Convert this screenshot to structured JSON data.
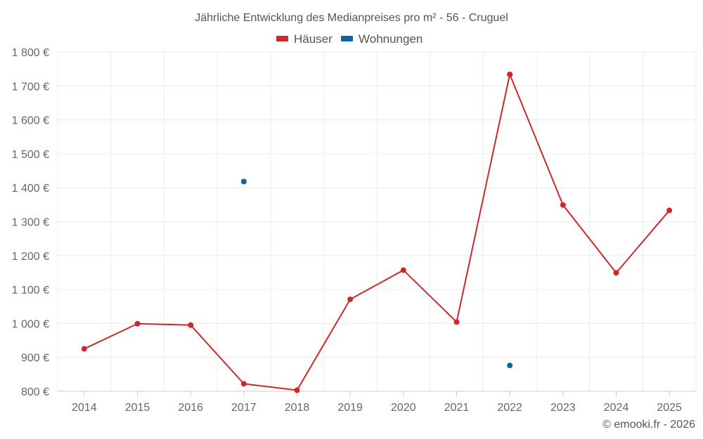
{
  "chart_data": {
    "type": "line",
    "title": "Jährliche Entwicklung des Medianpreises pro m² - 56 - Cruguel",
    "categories": [
      "2014",
      "2015",
      "2016",
      "2017",
      "2018",
      "2019",
      "2020",
      "2021",
      "2022",
      "2023",
      "2024",
      "2025"
    ],
    "ylim": [
      800,
      1800
    ],
    "ytick_step": 100,
    "ytick_labels": [
      "800 €",
      "900 €",
      "1 000 €",
      "1 100 €",
      "1 200 €",
      "1 300 €",
      "1 400 €",
      "1 500 €",
      "1 600 €",
      "1 700 €",
      "1 800 €"
    ],
    "grid": true,
    "legend_position": "top-center",
    "series": [
      {
        "name": "Häuser",
        "color": "#d0272b",
        "line": true,
        "values": [
          925,
          999,
          995,
          822,
          803,
          1071,
          1157,
          1004,
          1734,
          1349,
          1149,
          1333
        ]
      },
      {
        "name": "Wohnungen",
        "color": "#0a67a3",
        "line": false,
        "values": [
          null,
          null,
          null,
          1418,
          null,
          null,
          null,
          null,
          876,
          null,
          null,
          null
        ]
      }
    ],
    "credit": "© emooki.fr - 2026"
  }
}
